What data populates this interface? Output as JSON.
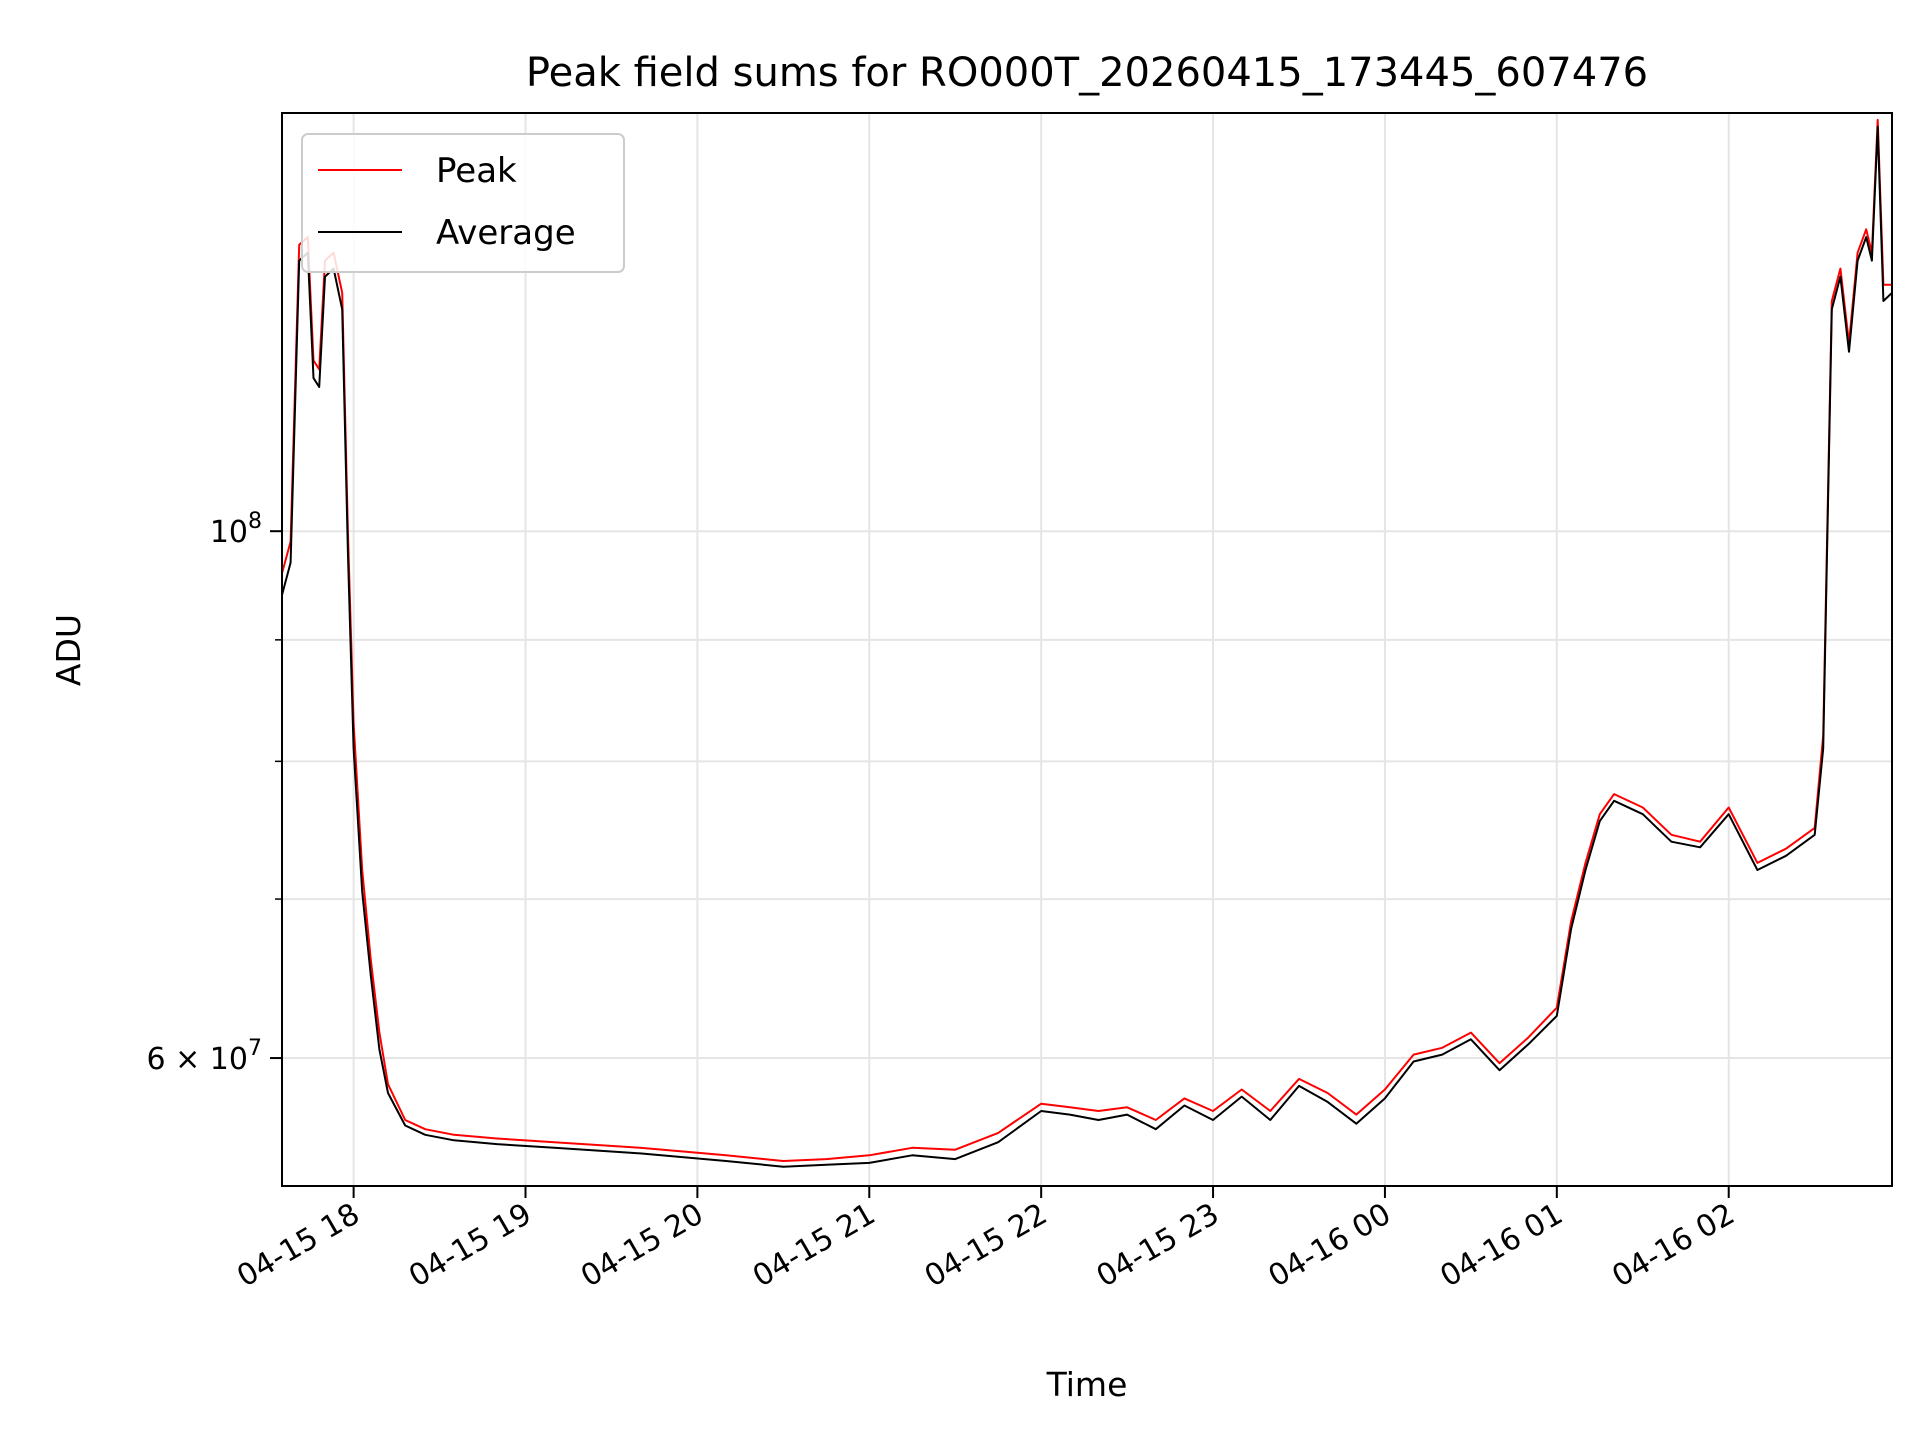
{
  "chart_data": {
    "type": "line",
    "title": "Peak field sums for RO000T_20260415_173445_607476",
    "xlabel": "Time",
    "ylabel": "ADU",
    "y_scale": "log",
    "grid": true,
    "legend_position": "top-left",
    "xlim": [
      "2026-04-15 17:35",
      "2026-04-16 02:57"
    ],
    "ylim": [
      53000000,
      150000000
    ],
    "x_ticks": [
      {
        "value": "2026-04-15 18:00",
        "label": "04-15 18"
      },
      {
        "value": "2026-04-15 19:00",
        "label": "04-15 19"
      },
      {
        "value": "2026-04-15 20:00",
        "label": "04-15 20"
      },
      {
        "value": "2026-04-15 21:00",
        "label": "04-15 21"
      },
      {
        "value": "2026-04-15 22:00",
        "label": "04-15 22"
      },
      {
        "value": "2026-04-15 23:00",
        "label": "04-15 23"
      },
      {
        "value": "2026-04-16 00:00",
        "label": "04-16 00"
      },
      {
        "value": "2026-04-16 01:00",
        "label": "04-16 01"
      },
      {
        "value": "2026-04-16 02:00",
        "label": "04-16 02"
      }
    ],
    "y_major_ticks": [
      {
        "value": 100000000,
        "base": "10",
        "exp": "8"
      },
      {
        "value": 60000000,
        "base": "6 × 10",
        "exp": "7"
      }
    ],
    "y_minor_ticks": [
      70000000,
      80000000,
      90000000
    ],
    "x": [
      "2026-04-15 17:35",
      "2026-04-15 17:38",
      "2026-04-15 17:41",
      "2026-04-15 17:44",
      "2026-04-15 17:46",
      "2026-04-15 17:48",
      "2026-04-15 17:50",
      "2026-04-15 17:53",
      "2026-04-15 17:56",
      "2026-04-15 17:58",
      "2026-04-15 18:00",
      "2026-04-15 18:03",
      "2026-04-15 18:06",
      "2026-04-15 18:09",
      "2026-04-15 18:12",
      "2026-04-15 18:18",
      "2026-04-15 18:25",
      "2026-04-15 18:35",
      "2026-04-15 18:50",
      "2026-04-15 19:10",
      "2026-04-15 19:40",
      "2026-04-15 20:10",
      "2026-04-15 20:30",
      "2026-04-15 20:45",
      "2026-04-15 21:00",
      "2026-04-15 21:15",
      "2026-04-15 21:30",
      "2026-04-15 21:45",
      "2026-04-15 22:00",
      "2026-04-15 22:10",
      "2026-04-15 22:20",
      "2026-04-15 22:30",
      "2026-04-15 22:40",
      "2026-04-15 22:50",
      "2026-04-15 23:00",
      "2026-04-15 23:10",
      "2026-04-15 23:20",
      "2026-04-15 23:30",
      "2026-04-15 23:40",
      "2026-04-15 23:50",
      "2026-04-16 00:00",
      "2026-04-16 00:10",
      "2026-04-16 00:20",
      "2026-04-16 00:30",
      "2026-04-16 00:40",
      "2026-04-16 00:50",
      "2026-04-16 01:00",
      "2026-04-16 01:05",
      "2026-04-16 01:10",
      "2026-04-16 01:15",
      "2026-04-16 01:20",
      "2026-04-16 01:30",
      "2026-04-16 01:40",
      "2026-04-16 01:50",
      "2026-04-16 02:00",
      "2026-04-16 02:10",
      "2026-04-16 02:20",
      "2026-04-16 02:30",
      "2026-04-16 02:33",
      "2026-04-16 02:36",
      "2026-04-16 02:39",
      "2026-04-16 02:42",
      "2026-04-16 02:45",
      "2026-04-16 02:48",
      "2026-04-16 02:50",
      "2026-04-16 02:52",
      "2026-04-16 02:54",
      "2026-04-16 02:57"
    ],
    "series": [
      {
        "name": "Peak",
        "color": "#ff0000",
        "values": [
          96000000,
          99000000,
          132000000,
          133000000,
          118000000,
          117000000,
          130000000,
          131000000,
          126000000,
          100000000,
          83000000,
          72000000,
          66000000,
          61500000,
          58500000,
          56500000,
          56000000,
          55700000,
          55500000,
          55300000,
          55000000,
          54600000,
          54300000,
          54400000,
          54600000,
          55000000,
          54900000,
          55800000,
          57400000,
          57200000,
          57000000,
          57200000,
          56500000,
          57700000,
          57000000,
          58200000,
          57000000,
          58800000,
          58000000,
          56800000,
          58200000,
          60200000,
          60600000,
          61500000,
          59700000,
          61200000,
          63000000,
          68500000,
          72500000,
          76000000,
          77500000,
          76500000,
          74500000,
          74000000,
          76500000,
          72500000,
          73500000,
          75000000,
          82000000,
          125000000,
          129000000,
          120000000,
          131000000,
          134000000,
          131000000,
          149000000,
          127000000,
          127000000
        ]
      },
      {
        "name": "Average",
        "color": "#000000",
        "values": [
          94000000,
          97000000,
          130000000,
          131000000,
          116000000,
          115000000,
          128000000,
          129000000,
          124000000,
          98000000,
          81000000,
          70500000,
          65000000,
          60500000,
          58000000,
          56200000,
          55700000,
          55400000,
          55200000,
          55000000,
          54700000,
          54300000,
          54000000,
          54100000,
          54200000,
          54600000,
          54400000,
          55300000,
          57000000,
          56800000,
          56500000,
          56800000,
          56000000,
          57300000,
          56500000,
          57800000,
          56500000,
          58400000,
          57500000,
          56300000,
          57700000,
          59800000,
          60200000,
          61100000,
          59300000,
          60800000,
          62500000,
          68000000,
          72000000,
          75500000,
          77000000,
          76000000,
          74000000,
          73600000,
          76000000,
          72000000,
          73000000,
          74500000,
          81000000,
          124000000,
          128000000,
          119000000,
          130000000,
          133000000,
          130000000,
          148000000,
          125000000,
          126000000
        ]
      }
    ]
  }
}
